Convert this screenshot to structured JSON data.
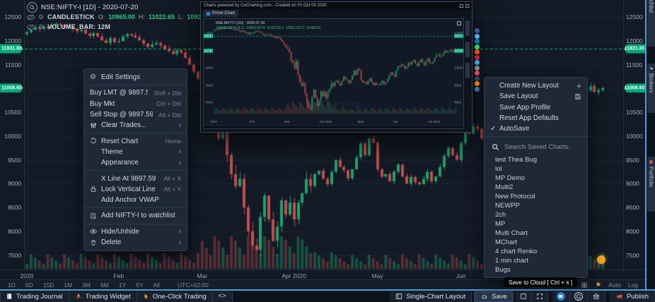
{
  "header": {
    "symbol_line": "NSE:NIFTY-I [1D] - 2020-07-20",
    "study_candle": "CANDLESTICK",
    "o_label": "O:",
    "o": "10965.00",
    "h_label": "H:",
    "h": "11022.65",
    "l_label": "L:",
    "l": "10921.00",
    "c_label": "C:",
    "c": "11008.60",
    "study_volume": "VOLUME_BAR: 12M"
  },
  "price_tags": [
    "11831.80",
    "11008.60"
  ],
  "context_menu": {
    "items": [
      {
        "label": "Edit Settings",
        "shortcut": "",
        "chevron": false
      },
      {
        "label": "Buy LMT @ 9897.59",
        "shortcut": "Shift + Dbl",
        "chevron": false
      },
      {
        "label": "Buy Mkt",
        "shortcut": "Ctrl + Dbl",
        "chevron": false
      },
      {
        "label": "Sell Stop @ 9897.59",
        "shortcut": "Alt + Dbl",
        "chevron": false
      },
      {
        "label": "Clear Trades...",
        "shortcut": "",
        "chevron": true
      },
      {
        "label": "Reset Chart",
        "shortcut": "Home",
        "chevron": false
      },
      {
        "label": "Theme",
        "shortcut": "",
        "chevron": true
      },
      {
        "label": "Appearance",
        "shortcut": "",
        "chevron": true
      },
      {
        "label": "X Line At 9897.59",
        "shortcut": "Alt + X",
        "chevron": false
      },
      {
        "label": "Lock Vertical Line",
        "shortcut": "Alt + Y",
        "chevron": false
      },
      {
        "label": "Add Anchor VWAP",
        "shortcut": "",
        "chevron": false
      },
      {
        "label": "Add NIFTY-I to watchlist",
        "shortcut": "",
        "chevron": false
      },
      {
        "label": "Hide/Unhide",
        "shortcut": "",
        "chevron": true
      },
      {
        "label": "Delete",
        "shortcut": "",
        "chevron": true
      }
    ]
  },
  "layout_menu": {
    "items": [
      "Create New Layout",
      "Save Layout",
      "Save App Profile",
      "Reset App Defaults",
      "AutoSave"
    ],
    "autosave_check": "✓",
    "search_placeholder": "Search Saved Charts.",
    "saved_charts": [
      "test Thea Bug",
      "lol",
      "MP Demo",
      "Multi2",
      "New Protocol",
      "NEWPP",
      "2ch",
      "MP",
      "Multi Chart",
      "MChart",
      "4 chart Renko",
      "1 min chart",
      "Bugs"
    ]
  },
  "preview": {
    "title": "Charts powered by GoCharting.com - Created on Fri Oct 09 2020",
    "tab_label": "Prime Chart",
    "symbol_line": "NSE:NIFTY-I [1D] - 2020-07-20",
    "ohlc_line": "CANDLESTICK O: 10965.00 H: 11022.65 L: 10921.00 C: 11008.60",
    "watermark": "GoCharting",
    "x_labels": [
      "2020",
      "Feb",
      "Mar",
      "Apr 2020",
      "May",
      "Jun",
      "Jul 2020"
    ],
    "x_label_days": [
      0,
      22,
      42,
      64,
      84,
      104,
      126
    ]
  },
  "share_buttons": [
    {
      "name": "facebook",
      "color": "#3b5998"
    },
    {
      "name": "twitter",
      "color": "#55acee"
    },
    {
      "name": "linkedin",
      "color": "#0077b5"
    },
    {
      "name": "whatsapp",
      "color": "#25d366"
    },
    {
      "name": "reddit",
      "color": "#ff4500"
    },
    {
      "name": "pinterest",
      "color": "#cb2027"
    },
    {
      "name": "telegram",
      "color": "#2ca5e0"
    },
    {
      "name": "email",
      "color": "#7f8c8d"
    },
    {
      "name": "pocket",
      "color": "#ee4056"
    },
    {
      "name": "tumblr",
      "color": "#36465d"
    },
    {
      "name": "blogger",
      "color": "#ff8000"
    },
    {
      "name": "vk",
      "color": "#4a76a8"
    }
  ],
  "side_tabs": [
    {
      "label": "Watchlist"
    },
    {
      "label": "Brokers"
    },
    {
      "label": "Portfolio"
    }
  ],
  "bottom_strip": {
    "timeframes": [
      "1D",
      "5D",
      "15D",
      "1M",
      "3M",
      "6M",
      "1Y",
      "5Y",
      "All"
    ],
    "timezone": "UTC+02:00",
    "auto": "Auto",
    "log": "Log"
  },
  "toolbar": {
    "trading_journal": "Trading Journal",
    "trading_widget": "Trading Widget",
    "one_click": "One-Click Trading",
    "code": "<>",
    "single_chart": "Single-Chart Layout",
    "save": "Save",
    "publish": "Publish"
  },
  "tooltip": "Save to Cloud [ Ctrl + s ]",
  "chart_data": {
    "type": "candlestick",
    "symbol": "NSE:NIFTY-I",
    "interval": "1D",
    "last_candle": {
      "open": 10965.0,
      "high": 11022.65,
      "low": 10921.0,
      "close": 11008.6
    },
    "dashed_level": 11831.8,
    "last_price": 11008.6,
    "ylim": [
      7350,
      12600
    ],
    "y_ticks": [
      12500,
      12000,
      11500,
      11000,
      10500,
      10000,
      9500,
      9000,
      8500,
      8000,
      7500
    ],
    "x_labels": [
      "2020",
      "Feb",
      "Mar",
      "Apr 2020",
      "May",
      "Jun"
    ],
    "x_label_days": [
      0,
      22,
      42,
      64,
      84,
      104
    ],
    "closes": [
      12180,
      12230,
      12280,
      12250,
      12300,
      12260,
      12320,
      12350,
      12340,
      12280,
      12300,
      12250,
      12200,
      12230,
      12150,
      12100,
      12160,
      12090,
      12010,
      11950,
      12060,
      11970,
      11990,
      12090,
      12140,
      12110,
      12070,
      12010,
      11940,
      11870,
      11920,
      11950,
      11900,
      11830,
      11780,
      11720,
      11800,
      11750,
      11640,
      11500,
      11350,
      11200,
      11100,
      10900,
      10450,
      10300,
      9950,
      10400,
      9600,
      9200,
      8950,
      9100,
      8500,
      8000,
      7700,
      7610,
      8300,
      8750,
      8250,
      7800,
      8100,
      8650,
      8350,
      8600,
      8250,
      8600,
      8800,
      9100,
      8950,
      9200,
      9270,
      9100,
      8990,
      9250,
      9500,
      9350,
      9280,
      9110,
      9300,
      9550,
      9850,
      9600,
      9950,
      9860,
      9300,
      9150,
      9200,
      9050,
      9250,
      9400,
      9150,
      9000,
      9140,
      9030,
      8990,
      9100,
      9250,
      9050,
      9150,
      9350,
      9580,
      9750,
      9600,
      9500,
      9850,
      10100,
      10050,
      10200,
      10150,
      9950,
      10050,
      10300,
      10200,
      10350,
      10450,
      10250,
      10100,
      10350,
      10500,
      10300,
      10150,
      10400,
      10550,
      10300,
      10250,
      10350,
      10600,
      10750,
      10800,
      10650,
      10700,
      10850,
      11000,
      10900,
      10950,
      11050,
      10920,
      10965,
      11008.6
    ]
  }
}
